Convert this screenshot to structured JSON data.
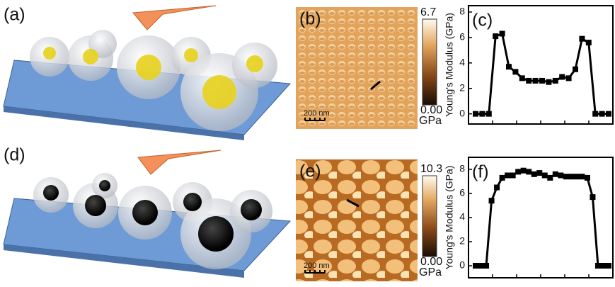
{
  "panels": {
    "a": "(a)",
    "b": "(b)",
    "d": "(d)",
    "e": "(e)"
  },
  "images": [
    {
      "scale_bar": "200 nm",
      "colorbar_ticks": [
        {
          "value": 0,
          "label": "0.00"
        },
        6.7
      ],
      "colorbar_unit": "GPa"
    },
    {
      "scale_bar": "200 nm",
      "colorbar_ticks": [
        {
          "value": 0,
          "label": "0.00"
        },
        10.3
      ],
      "colorbar_unit": "GPa"
    }
  ],
  "chart_data": [
    {
      "type": "line",
      "label": "(c)",
      "y_label": "Young's Modulus (GPa)",
      "color": "#000000",
      "categories": [
        null,
        null,
        null,
        null,
        null,
        null,
        null,
        null,
        null,
        null,
        null,
        null,
        null,
        null,
        null,
        null,
        null,
        null,
        null,
        null,
        null
      ],
      "values": [
        0,
        0,
        0,
        6.1,
        6.3,
        3.7,
        3.3,
        2.8,
        2.6,
        2.6,
        2.6,
        2.5,
        2.6,
        2.9,
        2.8,
        3.5,
        5.9,
        5.6,
        0,
        0,
        0
      ],
      "ylim": [
        -0.8,
        8.5
      ],
      "yticks": [
        0,
        2,
        4,
        6,
        8
      ]
    },
    {
      "type": "line",
      "label": "(f)",
      "y_label": "Young's Modulus (GPa)",
      "color": "#000000",
      "categories": [
        null,
        null,
        null,
        null,
        null,
        null,
        null,
        null,
        null,
        null,
        null,
        null,
        null,
        null,
        null,
        null,
        null,
        null,
        null,
        null,
        null,
        null,
        null,
        null,
        null,
        null
      ],
      "values": [
        0,
        0,
        0,
        5.4,
        6.5,
        7.3,
        7.5,
        7.5,
        7.8,
        7.9,
        7.8,
        7.6,
        7.7,
        7.5,
        7.3,
        7.6,
        7.5,
        7.4,
        7.4,
        7.4,
        7.4,
        7.3,
        5.7,
        0,
        0,
        0
      ],
      "ylim": [
        -1,
        9
      ],
      "yticks": [
        0,
        2,
        4,
        6,
        8
      ]
    }
  ]
}
